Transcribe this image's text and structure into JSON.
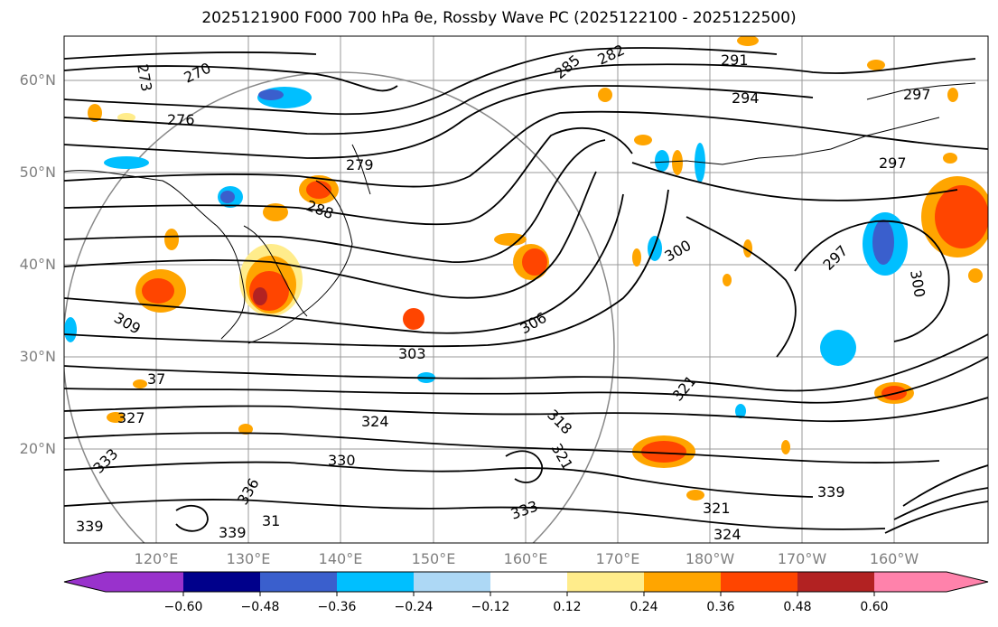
{
  "title": "2025121900 F000 700 hPa θe, Rossby Wave PC (2025122100 - 2025122500)",
  "map": {
    "lat_labels": [
      "60°N",
      "50°N",
      "40°N",
      "30°N",
      "20°N"
    ],
    "lon_labels": [
      "120°E",
      "130°E",
      "140°E",
      "150°E",
      "160°E",
      "170°E",
      "180°W",
      "170°W",
      "160°W"
    ],
    "contour_labels": [
      "270",
      "273",
      "276",
      "279",
      "282",
      "285",
      "288",
      "291",
      "294",
      "297",
      "297",
      "297",
      "300",
      "300",
      "303",
      "306",
      "309",
      "318",
      "321",
      "321",
      "321",
      "324",
      "324",
      "327",
      "330",
      "333",
      "333",
      "336",
      "339",
      "339",
      "339",
      "31",
      "37"
    ]
  },
  "colorbar": {
    "ticks": [
      "−0.60",
      "−0.48",
      "−0.36",
      "−0.24",
      "−0.12",
      "0.12",
      "0.24",
      "0.36",
      "0.48",
      "0.60"
    ],
    "colors": [
      "#9932cc",
      "#00008b",
      "#3a5fcd",
      "#00bfff",
      "#add8f5",
      "#ffffff",
      "#ffec8b",
      "#ffa500",
      "#ff4500",
      "#b22222",
      "#ff82ab"
    ]
  }
}
